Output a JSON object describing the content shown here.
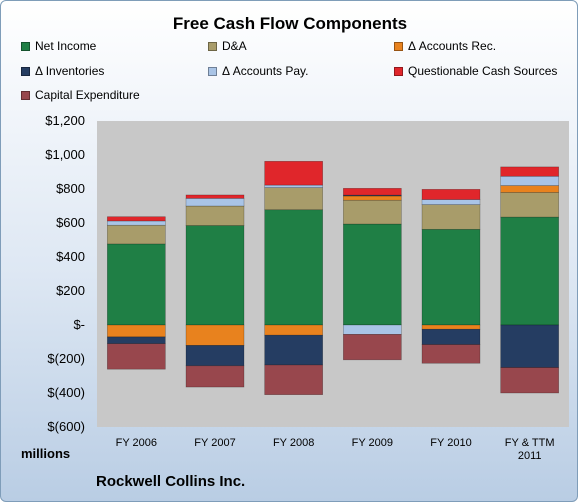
{
  "company_name": "Rockwell Collins Inc.",
  "unit_label": "millions",
  "chart_data": {
    "type": "bar",
    "stacked": true,
    "title": "Free Cash Flow Components",
    "xlabel": "",
    "ylabel": "",
    "categories": [
      "FY 2006",
      "FY 2007",
      "FY 2008",
      "FY 2009",
      "FY 2010",
      "FY & TTM\n2011"
    ],
    "ylim": [
      -600,
      1200
    ],
    "y_ticks": [
      1200,
      1000,
      800,
      600,
      400,
      200,
      0,
      -200,
      -400,
      -600
    ],
    "y_tick_labels": [
      "$1,200",
      "$1,000",
      "$800",
      "$600",
      "$400",
      "$200",
      "$-",
      "$(200)",
      "$(400)",
      "$(600)"
    ],
    "grid": false,
    "legend_position": "top",
    "series": [
      {
        "name": "Net Income",
        "color": "#1f7f45",
        "values": [
          477,
          585,
          678,
          594,
          563,
          635
        ]
      },
      {
        "name": "D&A",
        "color": "#a89c6a",
        "values": [
          110,
          115,
          130,
          140,
          145,
          145
        ]
      },
      {
        "name": "Δ Accounts Rec.",
        "color": "#e8821e",
        "values": [
          -70,
          -120,
          -60,
          25,
          -25,
          40
        ]
      },
      {
        "name": "Δ Inventories",
        "color": "#253d62",
        "values": [
          -40,
          -120,
          -175,
          5,
          -90,
          -250
        ]
      },
      {
        "name": "Δ Accounts Pay.",
        "color": "#a9c4e6",
        "values": [
          25,
          45,
          15,
          -55,
          30,
          55
        ]
      },
      {
        "name": "Questionable Cash Sources",
        "color": "#e0262b",
        "values": [
          25,
          20,
          140,
          40,
          60,
          55
        ]
      },
      {
        "name": "Capital Expenditure",
        "color": "#98474d",
        "values": [
          -150,
          -125,
          -175,
          -150,
          -110,
          -150
        ]
      }
    ]
  }
}
